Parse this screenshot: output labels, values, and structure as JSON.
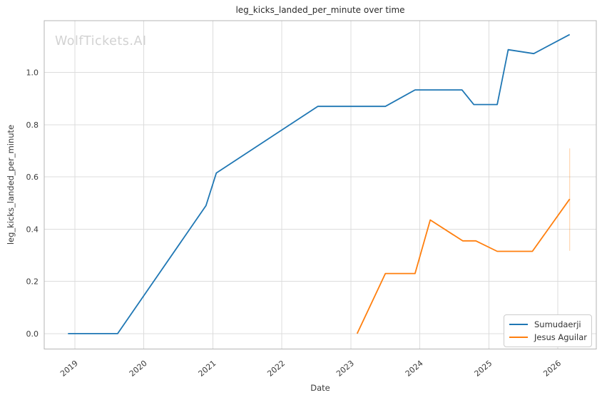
{
  "watermark": "WolfTickets.AI",
  "chart_data": {
    "type": "line",
    "title": "leg_kicks_landed_per_minute over time",
    "xlabel": "Date",
    "ylabel": "leg_kicks_landed_per_minute",
    "xlim": [
      2018.556,
      2026.556
    ],
    "ylim": [
      -0.059,
      1.198
    ],
    "xticks": [
      2019,
      2020,
      2021,
      2022,
      2023,
      2024,
      2025,
      2026
    ],
    "yticks": [
      0.0,
      0.2,
      0.4,
      0.6,
      0.8,
      1.0
    ],
    "grid": true,
    "legend_position": "lower right",
    "colors": {
      "grid": "#dcdcdc",
      "spine": "#b5b5b5",
      "tick_text": "#3a3a3a",
      "error_bar": "rgba(255,127,14,0.3)"
    },
    "series": [
      {
        "name": "Sumudaerji",
        "color": "#1f77b4",
        "points": [
          [
            2018.9,
            0.0
          ],
          [
            2019.62,
            0.0
          ],
          [
            2020.9,
            0.49
          ],
          [
            2021.05,
            0.615
          ],
          [
            2022.52,
            0.87
          ],
          [
            2023.5,
            0.87
          ],
          [
            2023.93,
            0.933
          ],
          [
            2024.61,
            0.933
          ],
          [
            2024.78,
            0.877
          ],
          [
            2025.12,
            0.877
          ],
          [
            2025.28,
            1.087
          ],
          [
            2025.65,
            1.072
          ],
          [
            2026.17,
            1.145
          ]
        ]
      },
      {
        "name": "Jesus Aguilar",
        "color": "#ff7f0e",
        "points": [
          [
            2023.09,
            0.0
          ],
          [
            2023.5,
            0.23
          ],
          [
            2023.93,
            0.23
          ],
          [
            2024.15,
            0.435
          ],
          [
            2024.62,
            0.355
          ],
          [
            2024.81,
            0.355
          ],
          [
            2025.12,
            0.315
          ],
          [
            2025.63,
            0.315
          ],
          [
            2026.17,
            0.515
          ]
        ],
        "error_bar": {
          "x": 2026.17,
          "y_low": 0.317,
          "y_high": 0.709
        }
      }
    ]
  }
}
